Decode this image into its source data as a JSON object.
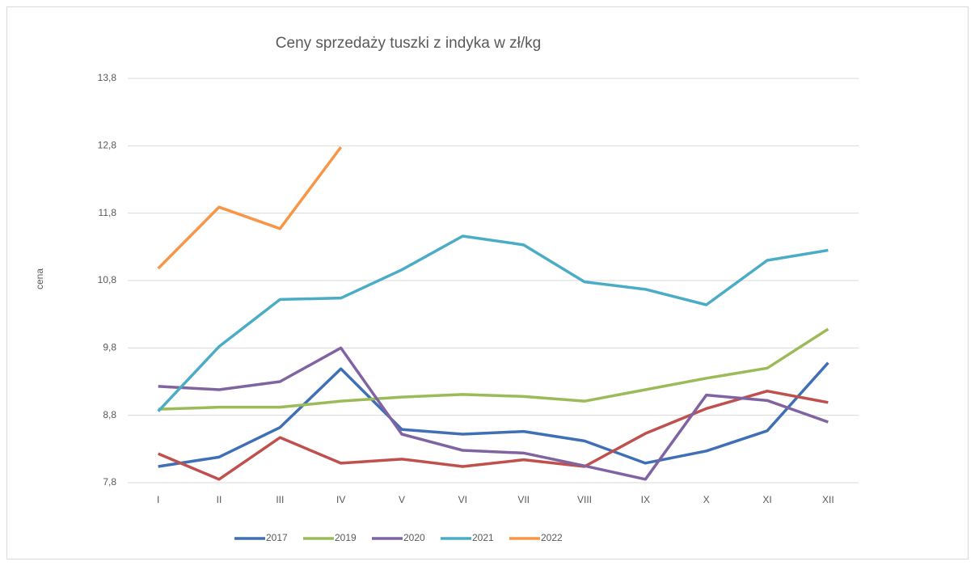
{
  "chart_data": {
    "type": "line",
    "title": "Ceny sprzedaży tuszki z indyka w zł/kg",
    "y_label": "cena",
    "categories": [
      "I",
      "II",
      "III",
      "IV",
      "V",
      "VI",
      "VII",
      "VIII",
      "IX",
      "X",
      "XI",
      "XII"
    ],
    "series": [
      {
        "name": "2017",
        "color": "#3f6fb4",
        "values": [
          8.04,
          8.18,
          8.62,
          9.49,
          8.59,
          8.52,
          8.56,
          8.42,
          8.09,
          8.27,
          8.57,
          9.58
        ]
      },
      {
        "color": "#c0504d",
        "values": [
          8.23,
          7.85,
          8.47,
          8.09,
          8.15,
          8.04,
          8.14,
          8.04,
          8.53,
          8.9,
          9.16,
          8.99
        ]
      },
      {
        "name": "2019",
        "color": "#9bbb59",
        "values": [
          8.89,
          8.92,
          8.92,
          9.01,
          9.07,
          9.11,
          9.08,
          9.01,
          9.18,
          9.35,
          9.5,
          10.08
        ]
      },
      {
        "name": "2020",
        "color": "#8064a2",
        "values": [
          9.23,
          9.18,
          9.3,
          9.8,
          8.52,
          8.28,
          8.24,
          8.05,
          7.85,
          9.1,
          9.02,
          8.7
        ]
      },
      {
        "name": "2021",
        "color": "#4bacc6",
        "values": [
          8.86,
          9.82,
          10.52,
          10.54,
          10.96,
          11.46,
          11.33,
          10.78,
          10.67,
          10.44,
          11.1,
          11.25
        ]
      },
      {
        "name": "2022",
        "color": "#f79646",
        "values": [
          10.98,
          11.89,
          11.57,
          12.78,
          null,
          null,
          null,
          null,
          null,
          null,
          null,
          null
        ]
      }
    ],
    "ylim": [
      7.8,
      13.8
    ],
    "yticks": [
      {
        "value": 7.8,
        "label": "7,8"
      },
      {
        "value": 8.8,
        "label": "8,8"
      },
      {
        "value": 9.8,
        "label": "9,8"
      },
      {
        "value": 10.8,
        "label": "10,8"
      },
      {
        "value": 11.8,
        "label": "11,8"
      },
      {
        "value": 12.8,
        "label": "12,8"
      },
      {
        "value": 13.8,
        "label": "13,8"
      }
    ],
    "grid": true,
    "legend": "bottom"
  }
}
